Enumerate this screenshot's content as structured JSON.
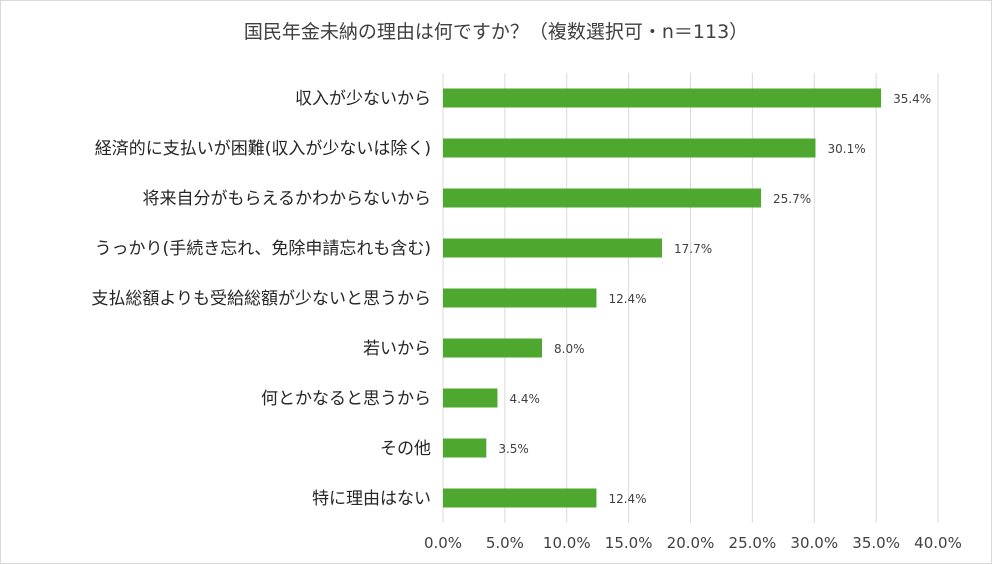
{
  "chart_data": {
    "type": "bar",
    "orientation": "horizontal",
    "title": "国民年金未納の理由は何ですか？（複数選択可・n＝113）",
    "categories": [
      "収入が少ないから",
      "経済的に支払いが困難(収入が少ないは除く)",
      "将来自分がもらえるかわからないから",
      "うっかり(手続き忘れ、免除申請忘れも含む)",
      "支払総額よりも受給総額が少ないと思うから",
      "若いから",
      "何とかなると思うから",
      "その他",
      "特に理由はない"
    ],
    "values": [
      35.4,
      30.1,
      25.7,
      17.7,
      12.4,
      8.0,
      4.4,
      3.5,
      12.4
    ],
    "data_labels": [
      "35.4%",
      "30.1%",
      "25.7%",
      "17.7%",
      "12.4%",
      "8.0%",
      "4.4%",
      "3.5%",
      "12.4%"
    ],
    "xlim": [
      0,
      40
    ],
    "x_ticks": [
      "0.0%",
      "5.0%",
      "10.0%",
      "15.0%",
      "20.0%",
      "25.0%",
      "30.0%",
      "35.0%",
      "40.0%"
    ],
    "grid": true,
    "bar_color": "#4ea72e",
    "grid_color": "#d9d9d9"
  }
}
